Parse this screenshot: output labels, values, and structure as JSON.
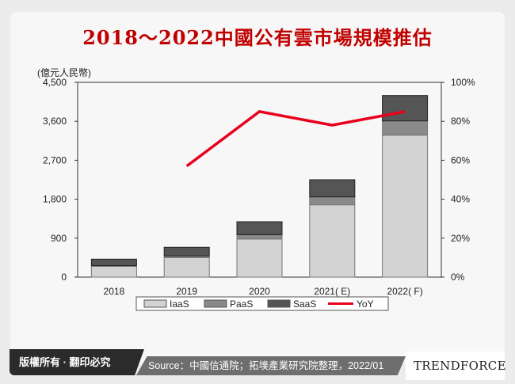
{
  "title": "2018～2022中國公有雲市場規模推估",
  "footer": {
    "copyright": "版權所有 · 翻印必究",
    "source": "Source：中國信通院；拓墣產業研究院整理，2022/01",
    "logo": "TRENDFORCE"
  },
  "chart_data": {
    "type": "bar",
    "stacked": true,
    "title": "2018～2022中國公有雲市場規模推估",
    "ylabel": "(億元人民幣)",
    "ylim": [
      0,
      4500
    ],
    "yticks": [
      "0",
      "900",
      "1,800",
      "2,700",
      "3,600",
      "4,500"
    ],
    "y2lim": [
      0,
      100
    ],
    "y2ticks": [
      "0%",
      "20%",
      "40%",
      "60%",
      "80%",
      "100%"
    ],
    "categories": [
      "2018",
      "2019",
      "2020",
      "2021( E)",
      "2022( F)"
    ],
    "series": [
      {
        "name": "IaaS",
        "type": "bar",
        "color": "#d3d3d3",
        "values": [
          250,
          450,
          880,
          1670,
          3280
        ]
      },
      {
        "name": "PaaS",
        "type": "bar",
        "color": "#8a8a8a",
        "values": [
          15,
          40,
          100,
          183,
          329
        ]
      },
      {
        "name": "SaaS",
        "type": "bar",
        "color": "#555555",
        "values": [
          150,
          200,
          300,
          397,
          586
        ]
      },
      {
        "name": "YoY",
        "type": "line",
        "axis": "right",
        "color": "#e8001c",
        "values": [
          null,
          57,
          85,
          78,
          85
        ]
      }
    ],
    "legend": "bottom",
    "grid": false
  }
}
